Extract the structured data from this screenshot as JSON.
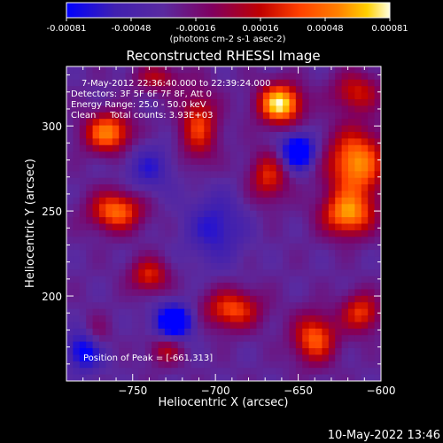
{
  "chart_data": {
    "type": "heatmap",
    "title": "Reconstructed RHESSI Image",
    "xlabel": "Heliocentric X (arcsec)",
    "ylabel": "Heliocentric Y (arcsec)",
    "xlim": [
      -790,
      -600
    ],
    "ylim": [
      150,
      335
    ],
    "xticks": [
      -750,
      -700,
      -650,
      -600
    ],
    "yticks": [
      200,
      250,
      300
    ],
    "colorbar": {
      "ticks": [
        "-0.00081",
        "-0.00048",
        "-0.00016",
        "0.00016",
        "0.00048",
        "0.00081"
      ],
      "units": "(photons cm-2 s-1 asec-2)",
      "colormap": [
        "#0000ff",
        "#4020b0",
        "#5a2aa0",
        "#800060",
        "#c00000",
        "#ff4000",
        "#ff8000",
        "#ffd000",
        "#ffffe0"
      ]
    },
    "annotations": {
      "time_range": "7-May-2012 22:36:40.000 to 22:39:24.000",
      "detectors": "Detectors: 3F 5F 6F 7F 8F, Att 0",
      "energy": "Energy Range: 25.0 - 50.0 keV",
      "clean": "Clean     Total counts: 3.93E+03",
      "peak": "Position of Peak = [-661,313]"
    },
    "peak": [
      -661,
      313
    ],
    "blobs": [
      {
        "x": -661,
        "y": 313,
        "amp": 1.0,
        "sx": 9,
        "sy": 8
      },
      {
        "x": -765,
        "y": 296,
        "amp": 0.75,
        "sx": 10,
        "sy": 8
      },
      {
        "x": -615,
        "y": 278,
        "amp": 0.8,
        "sx": 12,
        "sy": 14
      },
      {
        "x": -760,
        "y": 250,
        "amp": 0.7,
        "sx": 11,
        "sy": 8
      },
      {
        "x": -620,
        "y": 248,
        "amp": 0.75,
        "sx": 11,
        "sy": 9
      },
      {
        "x": -710,
        "y": 300,
        "amp": 0.55,
        "sx": 8,
        "sy": 14
      },
      {
        "x": -668,
        "y": 270,
        "amp": 0.5,
        "sx": 8,
        "sy": 10
      },
      {
        "x": -690,
        "y": 192,
        "amp": 0.6,
        "sx": 12,
        "sy": 8
      },
      {
        "x": -640,
        "y": 175,
        "amp": 0.65,
        "sx": 9,
        "sy": 10
      },
      {
        "x": -740,
        "y": 212,
        "amp": 0.5,
        "sx": 8,
        "sy": 7
      },
      {
        "x": -612,
        "y": 190,
        "amp": 0.55,
        "sx": 8,
        "sy": 8
      },
      {
        "x": -730,
        "y": 168,
        "amp": 0.35,
        "sx": 7,
        "sy": 6
      },
      {
        "x": -772,
        "y": 175,
        "amp": 0.3,
        "sx": 6,
        "sy": 8
      },
      {
        "x": -615,
        "y": 320,
        "amp": 0.45,
        "sx": 10,
        "sy": 8
      },
      {
        "x": -735,
        "y": 328,
        "amp": 0.35,
        "sx": 10,
        "sy": 6
      },
      {
        "x": -650,
        "y": 285,
        "amp": -0.75,
        "sx": 7,
        "sy": 7
      },
      {
        "x": -725,
        "y": 185,
        "amp": -0.75,
        "sx": 8,
        "sy": 7
      },
      {
        "x": -778,
        "y": 168,
        "amp": -0.6,
        "sx": 8,
        "sy": 8
      },
      {
        "x": -700,
        "y": 240,
        "amp": -0.35,
        "sx": 12,
        "sy": 14
      },
      {
        "x": -740,
        "y": 275,
        "amp": -0.3,
        "sx": 10,
        "sy": 10
      }
    ]
  },
  "footer": {
    "timestamp": "10-May-2022 13:46"
  }
}
